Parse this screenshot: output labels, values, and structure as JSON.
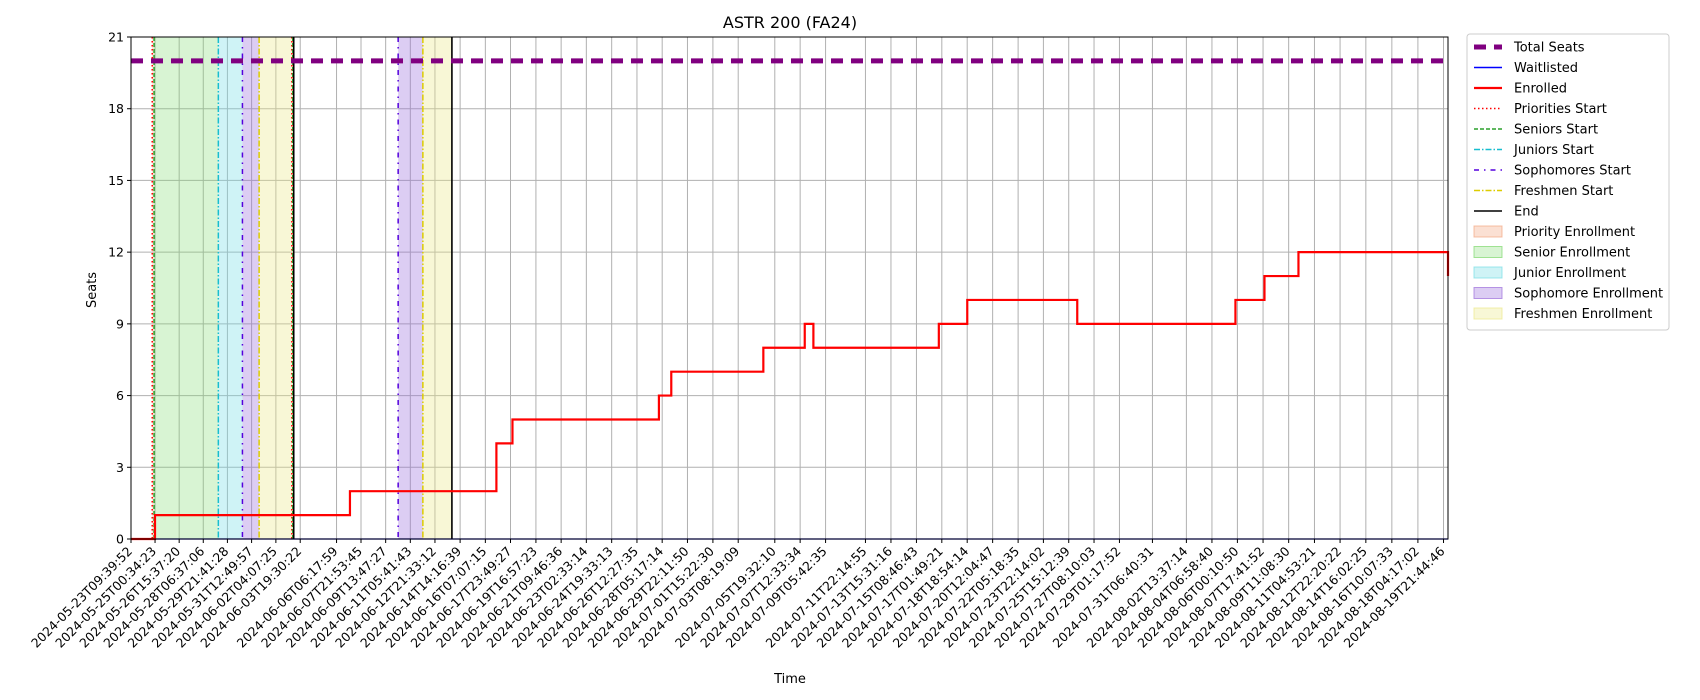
{
  "chart_data": {
    "type": "line",
    "title": "ASTR 200 (FA24)",
    "xlabel": "Time",
    "ylabel": "Seats",
    "ylim": [
      0,
      21
    ],
    "yticks": [
      "0",
      "3",
      "6",
      "9",
      "12",
      "15",
      "18",
      "21"
    ],
    "x_range": [
      "2024-05-23T09:39:52",
      "2024-08-20T05:00:00"
    ],
    "xticks": [
      "2024-05-23T09:39:52",
      "2024-05-25T00:34:23",
      "2024-05-26T15:37:20",
      "2024-05-28T06:37:06",
      "2024-05-29T21:41:28",
      "2024-05-31T12:49:57",
      "2024-06-02T04:07:25",
      "2024-06-03T19:30:22",
      "2024-06-06T06:17:59",
      "2024-06-07T21:53:45",
      "2024-06-09T13:47:27",
      "2024-06-11T05:41:43",
      "2024-06-12T21:33:12",
      "2024-06-14T14:16:39",
      "2024-06-16T07:07:15",
      "2024-06-17T23:49:27",
      "2024-06-19T16:57:23",
      "2024-06-21T09:46:36",
      "2024-06-23T02:33:14",
      "2024-06-24T19:33:13",
      "2024-06-26T12:27:35",
      "2024-06-28T05:17:14",
      "2024-06-29T22:11:50",
      "2024-07-01T15:22:30",
      "2024-07-03T08:19:09",
      "2024-07-05T19:32:10",
      "2024-07-07T12:33:34",
      "2024-07-09T05:42:35",
      "2024-07-11T22:14:55",
      "2024-07-13T15:31:16",
      "2024-07-15T08:46:43",
      "2024-07-17T01:49:21",
      "2024-07-18T18:54:14",
      "2024-07-20T12:04:47",
      "2024-07-22T05:18:35",
      "2024-07-23T22:14:02",
      "2024-07-25T15:12:39",
      "2024-07-27T08:10:03",
      "2024-07-29T01:17:52",
      "2024-07-31T06:40:31",
      "2024-08-02T13:37:14",
      "2024-08-04T06:58:40",
      "2024-08-06T00:10:50",
      "2024-08-07T17:41:52",
      "2024-08-09T11:08:30",
      "2024-08-11T04:53:21",
      "2024-08-12T22:20:22",
      "2024-08-14T16:02:25",
      "2024-08-16T10:07:33",
      "2024-08-18T04:17:02",
      "2024-08-19T21:44:46"
    ],
    "series": [
      {
        "name": "Total Seats",
        "color": "#800080",
        "style": "dashed-thick",
        "points": [
          [
            "2024-05-23T09:39:52",
            20
          ],
          [
            "2024-08-20T05:00:00",
            20
          ]
        ]
      },
      {
        "name": "Waitlisted",
        "color": "#0000ff",
        "style": "solid-thin",
        "points": [
          [
            "2024-05-23T09:39:52",
            0
          ],
          [
            "2024-08-20T05:00:00",
            0
          ]
        ]
      },
      {
        "name": "Enrolled",
        "color": "#ff0000",
        "style": "step",
        "points": [
          [
            "2024-05-23T09:39:52",
            0
          ],
          [
            "2024-05-25T00:30:00",
            1
          ],
          [
            "2024-06-07T04:00:00",
            2
          ],
          [
            "2024-06-17T01:00:00",
            4
          ],
          [
            "2024-06-18T03:00:00",
            5
          ],
          [
            "2024-06-28T00:00:00",
            6
          ],
          [
            "2024-06-28T20:00:00",
            7
          ],
          [
            "2024-07-05T01:00:00",
            8
          ],
          [
            "2024-07-07T20:00:00",
            9
          ],
          [
            "2024-07-08T10:00:00",
            8
          ],
          [
            "2024-07-16T21:00:00",
            9
          ],
          [
            "2024-07-18T19:00:00",
            10
          ],
          [
            "2024-07-26T05:00:00",
            9
          ],
          [
            "2024-08-05T21:00:00",
            10
          ],
          [
            "2024-08-07T20:00:00",
            11
          ],
          [
            "2024-08-10T03:00:00",
            12
          ],
          [
            "2024-09-05T03:00:00",
            11
          ],
          [
            "2024-08-20T05:00:00",
            11
          ]
        ]
      }
    ],
    "markers": [
      {
        "name": "Priorities Start",
        "color": "#ff0000",
        "style": "dotted",
        "at": [
          "2024-05-24T20:00:00",
          "2024-06-03T06:00:00"
        ]
      },
      {
        "name": "Seniors Start",
        "color": "#2ca02c",
        "style": "dashed",
        "at": [
          "2024-05-24T23:00:00",
          "2024-06-03T07:30:00"
        ]
      },
      {
        "name": "Juniors Start",
        "color": "#17becf",
        "style": "dashdot",
        "at": [
          "2024-05-29T07:00:00"
        ]
      },
      {
        "name": "Sophomores Start",
        "color": "#5500dd",
        "style": "dashdot-sparse",
        "at": [
          "2024-05-30T22:00:00",
          "2024-06-10T10:00:00"
        ]
      },
      {
        "name": "Freshmen Start",
        "color": "#ddcc00",
        "style": "dashdot",
        "at": [
          "2024-06-01T01:00:00",
          "2024-06-12T02:00:00"
        ]
      },
      {
        "name": "End",
        "color": "#000000",
        "style": "solid",
        "at": [
          "2024-06-03T09:00:00",
          "2024-06-14T01:00:00"
        ]
      }
    ],
    "regions": [
      {
        "name": "Priority Enrollment",
        "color": "#f4a582",
        "opacity": 0.35,
        "spans": [
          [
            "2024-05-24T20:00:00",
            "2024-05-24T23:00:00"
          ]
        ]
      },
      {
        "name": "Senior Enrollment",
        "color": "#7fd96e",
        "opacity": 0.3,
        "spans": [
          [
            "2024-05-24T23:00:00",
            "2024-05-29T07:00:00"
          ]
        ]
      },
      {
        "name": "Junior Enrollment",
        "color": "#76dde6",
        "opacity": 0.35,
        "spans": [
          [
            "2024-05-29T07:00:00",
            "2024-05-30T22:00:00"
          ]
        ]
      },
      {
        "name": "Sophomore Enrollment",
        "color": "#9c6fdc",
        "opacity": 0.35,
        "spans": [
          [
            "2024-05-30T22:00:00",
            "2024-06-01T01:00:00"
          ],
          [
            "2024-06-10T10:00:00",
            "2024-06-12T02:00:00"
          ]
        ]
      },
      {
        "name": "Freshmen Enrollment",
        "color": "#ece88a",
        "opacity": 0.35,
        "spans": [
          [
            "2024-06-01T01:00:00",
            "2024-06-03T09:00:00"
          ],
          [
            "2024-06-12T02:00:00",
            "2024-06-14T01:00:00"
          ]
        ]
      }
    ],
    "grid": true,
    "legend_position": "outside-top-right",
    "legend": [
      "Total Seats",
      "Waitlisted",
      "Enrolled",
      "Priorities Start",
      "Seniors Start",
      "Juniors Start",
      "Sophomores Start",
      "Freshmen Start",
      "End",
      "Priority Enrollment",
      "Senior Enrollment",
      "Junior Enrollment",
      "Sophomore Enrollment",
      "Freshmen Enrollment"
    ]
  }
}
